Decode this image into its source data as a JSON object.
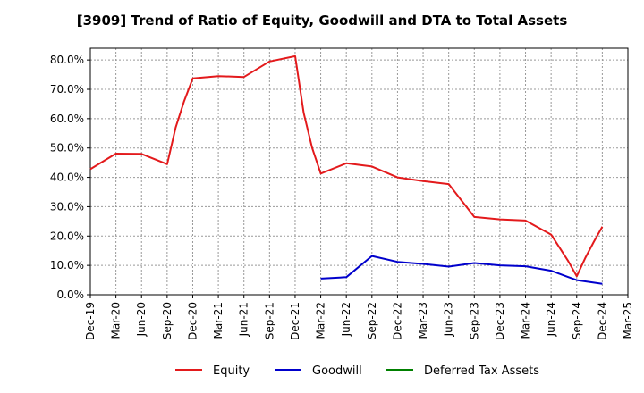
{
  "chart_data": {
    "type": "line",
    "title": "[3909]  Trend of Ratio of Equity, Goodwill and DTA to Total Assets",
    "xlabel": "",
    "ylabel": "",
    "x_ticks": [
      "Dec-19",
      "Mar-20",
      "Jun-20",
      "Sep-20",
      "Dec-20",
      "Mar-21",
      "Jun-21",
      "Sep-21",
      "Dec-21",
      "Mar-22",
      "Jun-22",
      "Sep-22",
      "Dec-22",
      "Mar-23",
      "Jun-23",
      "Sep-23",
      "Dec-23",
      "Mar-24",
      "Jun-24",
      "Sep-24",
      "Dec-24",
      "Mar-25"
    ],
    "y_ticks": [
      "0.0%",
      "10.0%",
      "20.0%",
      "30.0%",
      "40.0%",
      "50.0%",
      "60.0%",
      "70.0%",
      "80.0%"
    ],
    "ylim": [
      0,
      84
    ],
    "grid": true,
    "legend_position": "bottom",
    "series": [
      {
        "name": "Equity",
        "color": "#e31a1c",
        "points": [
          [
            "Dec-19",
            42.8
          ],
          [
            "Mar-20",
            48.1
          ],
          [
            "Jun-20",
            48.0
          ],
          [
            "Sep-20",
            44.5
          ],
          [
            "Oct-20",
            57.0
          ],
          [
            "Nov-20",
            66.0
          ],
          [
            "Dec-20",
            73.7
          ],
          [
            "Mar-21",
            74.5
          ],
          [
            "Jun-21",
            74.2
          ],
          [
            "Sep-21",
            79.5
          ],
          [
            "Dec-21",
            81.3
          ],
          [
            "Jan-22",
            62.0
          ],
          [
            "Feb-22",
            50.0
          ],
          [
            "Mar-22",
            41.3
          ],
          [
            "Jun-22",
            44.8
          ],
          [
            "Sep-22",
            43.7
          ],
          [
            "Dec-22",
            40.0
          ],
          [
            "Mar-23",
            38.7
          ],
          [
            "Jun-23",
            37.7
          ],
          [
            "Sep-23",
            26.5
          ],
          [
            "Dec-23",
            25.7
          ],
          [
            "Mar-24",
            25.3
          ],
          [
            "Jun-24",
            20.5
          ],
          [
            "Jul-24",
            16.0
          ],
          [
            "Aug-24",
            11.5
          ],
          [
            "Sep-24",
            6.3
          ],
          [
            "Oct-24",
            12.5
          ],
          [
            "Nov-24",
            18.0
          ],
          [
            "Dec-24",
            23.2
          ]
        ]
      },
      {
        "name": "Goodwill",
        "color": "#0000cc",
        "points": [
          [
            "Mar-22",
            5.5
          ],
          [
            "Jun-22",
            6.0
          ],
          [
            "Sep-22",
            13.2
          ],
          [
            "Dec-22",
            11.2
          ],
          [
            "Mar-23",
            10.5
          ],
          [
            "Jun-23",
            9.6
          ],
          [
            "Sep-23",
            10.8
          ],
          [
            "Dec-23",
            10.0
          ],
          [
            "Mar-24",
            9.7
          ],
          [
            "Jun-24",
            8.2
          ],
          [
            "Sep-24",
            5.0
          ],
          [
            "Dec-24",
            3.7
          ]
        ]
      },
      {
        "name": "Deferred Tax Assets",
        "color": "#008000",
        "points": []
      }
    ]
  }
}
